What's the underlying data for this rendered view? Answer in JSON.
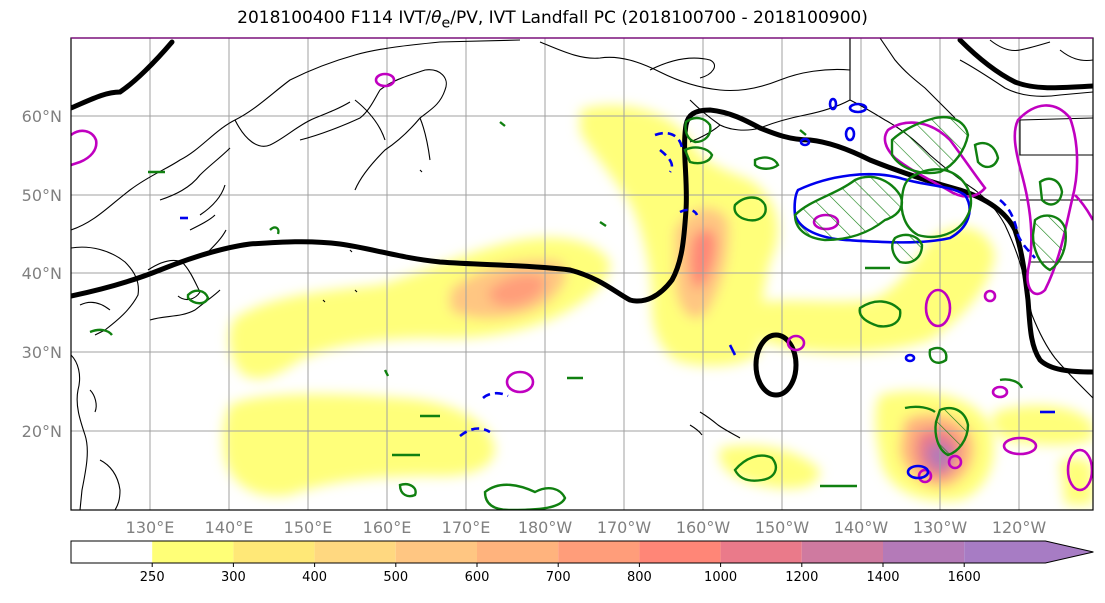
{
  "title": {
    "prefix": "2018100400 F114 IVT/",
    "theta": "θ",
    "sub": "e",
    "suffix": "/PV, IVT Landfall PC (2018100700 - 2018100900)"
  },
  "lat_labels": [
    "60°N",
    "50°N",
    "40°N",
    "30°N",
    "20°N"
  ],
  "lon_labels": [
    "130°E",
    "140°E",
    "150°E",
    "160°E",
    "170°E",
    "180°W",
    "170°W",
    "160°W",
    "150°W",
    "140°W",
    "130°W",
    "120°W"
  ],
  "colorbar": {
    "ticks": [
      "250",
      "300",
      "400",
      "500",
      "600",
      "700",
      "800",
      "1000",
      "1200",
      "1400",
      "1600"
    ],
    "colors": [
      "#ffffff",
      "#ffff77",
      "#ffe877",
      "#ffd880",
      "#ffc682",
      "#ffb37d",
      "#ff9d7a",
      "#ff8677",
      "#ea7a8a",
      "#cf7aa0",
      "#b47ab8",
      "#a77cc4"
    ]
  },
  "colors": {
    "ivt_contour_black": "#000000",
    "pv_magenta": "#c000c0",
    "theta_blue": "#0000ee",
    "green": "#108010"
  }
}
